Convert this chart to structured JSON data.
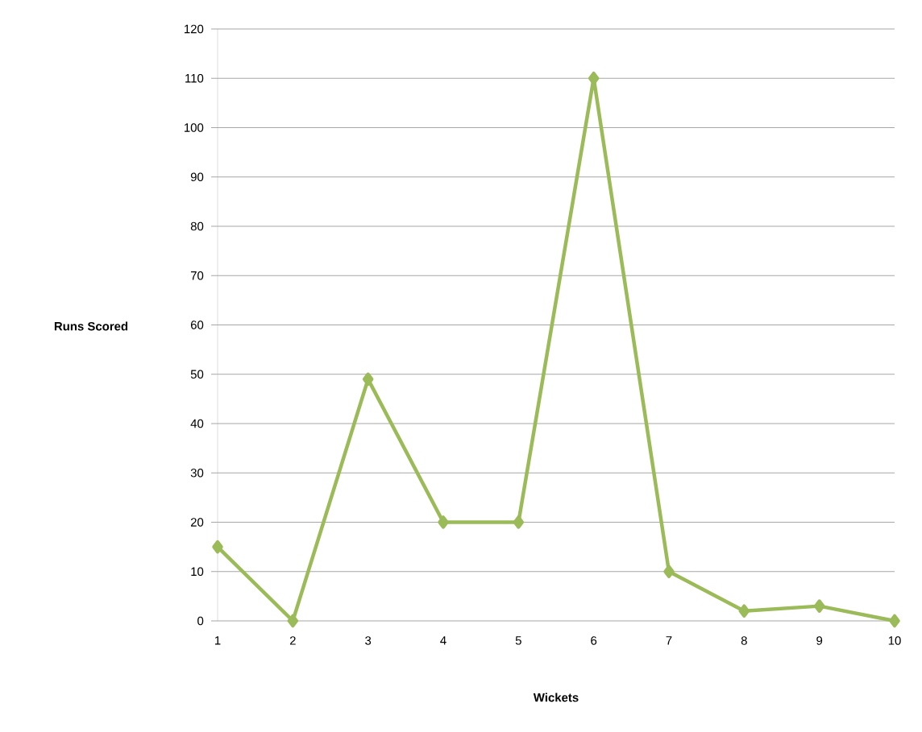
{
  "chart_data": {
    "type": "line",
    "xlabel": "Wickets",
    "ylabel": "Runs Scored",
    "categories": [
      "1",
      "2",
      "3",
      "4",
      "5",
      "6",
      "7",
      "8",
      "9",
      "10"
    ],
    "series": [
      {
        "color": "#9bbb59",
        "values": [
          15,
          0,
          49,
          20,
          20,
          110,
          10,
          2,
          3,
          0
        ]
      }
    ],
    "ylim": [
      0,
      120
    ],
    "yticks": [
      0,
      10,
      20,
      30,
      40,
      50,
      60,
      70,
      80,
      90,
      100,
      110,
      120
    ],
    "grid": "y",
    "marker": "diamond",
    "line_style": "solid"
  }
}
